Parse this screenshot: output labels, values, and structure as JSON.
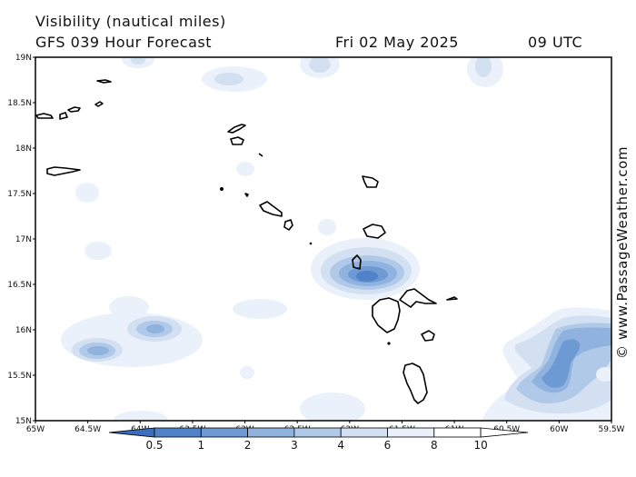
{
  "header": {
    "title_line1": "Visibility (nautical miles)",
    "title_line2": "GFS 039 Hour Forecast",
    "date": "Fri 02 May 2025",
    "time": "09 UTC"
  },
  "credit": "© www.PassageWeather.com",
  "map": {
    "lon_range": [
      "65W",
      "59.5W"
    ],
    "lat_range": [
      "15N",
      "19N"
    ],
    "lon_labels": [
      "65W",
      "64.5W",
      "64W",
      "63.5W",
      "63W",
      "62.5W",
      "62W",
      "61.5W",
      "61W",
      "60.5W",
      "60W",
      "59.5W"
    ],
    "lat_labels": [
      "19N",
      "18.5N",
      "18N",
      "17.5N",
      "17N",
      "16.5N",
      "16N",
      "15.5N",
      "15N"
    ]
  },
  "colorbar": {
    "labels": [
      "0.5",
      "1",
      "2",
      "3",
      "4",
      "6",
      "8",
      "10"
    ],
    "colors": [
      "#3a6fbf",
      "#4f82c9",
      "#6e9ad4",
      "#8fb2de",
      "#b0c9e8",
      "#d2e0f2",
      "#eaf1fa",
      "#ffffff"
    ]
  }
}
